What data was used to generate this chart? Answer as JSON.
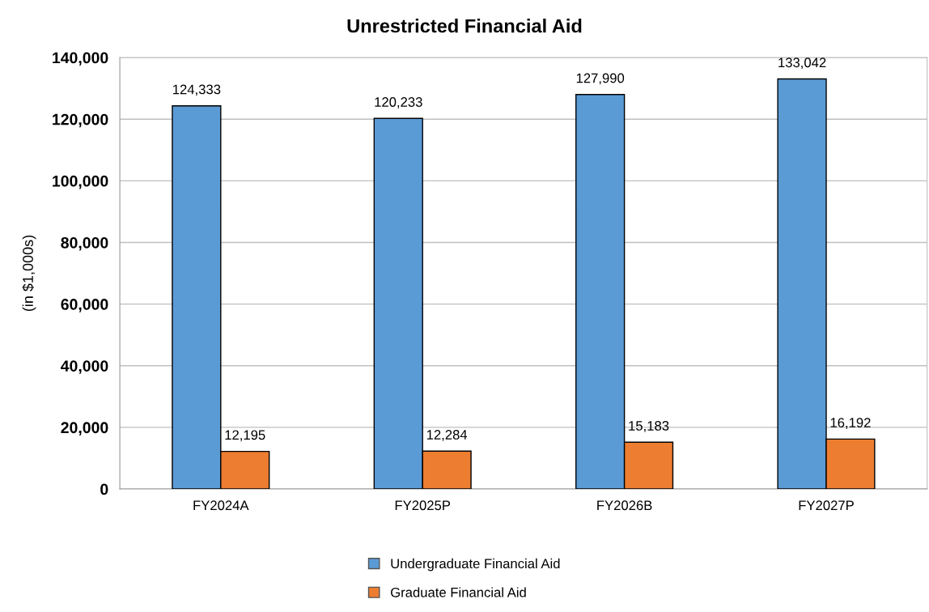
{
  "chart_data": {
    "type": "bar",
    "title": "Unrestricted Financial Aid",
    "ylabel": "(in $1,000s)",
    "categories": [
      "FY2024A",
      "FY2025P",
      "FY2026B",
      "FY2027P"
    ],
    "series": [
      {
        "name": "Undergraduate Financial Aid",
        "color": "#5b9bd5",
        "values": [
          124333,
          120233,
          127990,
          133042
        ],
        "value_labels": [
          "124,333",
          "120,233",
          "127,990",
          "133,042"
        ]
      },
      {
        "name": "Graduate Financial Aid",
        "color": "#ed7d31",
        "values": [
          12195,
          12284,
          15183,
          16192
        ],
        "value_labels": [
          "12,195",
          "12,284",
          "15,183",
          "16,192"
        ]
      }
    ],
    "ylim": [
      0,
      140000
    ],
    "yticks": [
      {
        "value": 0,
        "label": "0"
      },
      {
        "value": 20000,
        "label": "20,000"
      },
      {
        "value": 40000,
        "label": "40,000"
      },
      {
        "value": 60000,
        "label": "60,000"
      },
      {
        "value": 80000,
        "label": "80,000"
      },
      {
        "value": 100000,
        "label": "100,000"
      },
      {
        "value": 120000,
        "label": "120,000"
      },
      {
        "value": 140000,
        "label": "140,000"
      }
    ],
    "grid": "y",
    "legend": "bottom"
  }
}
